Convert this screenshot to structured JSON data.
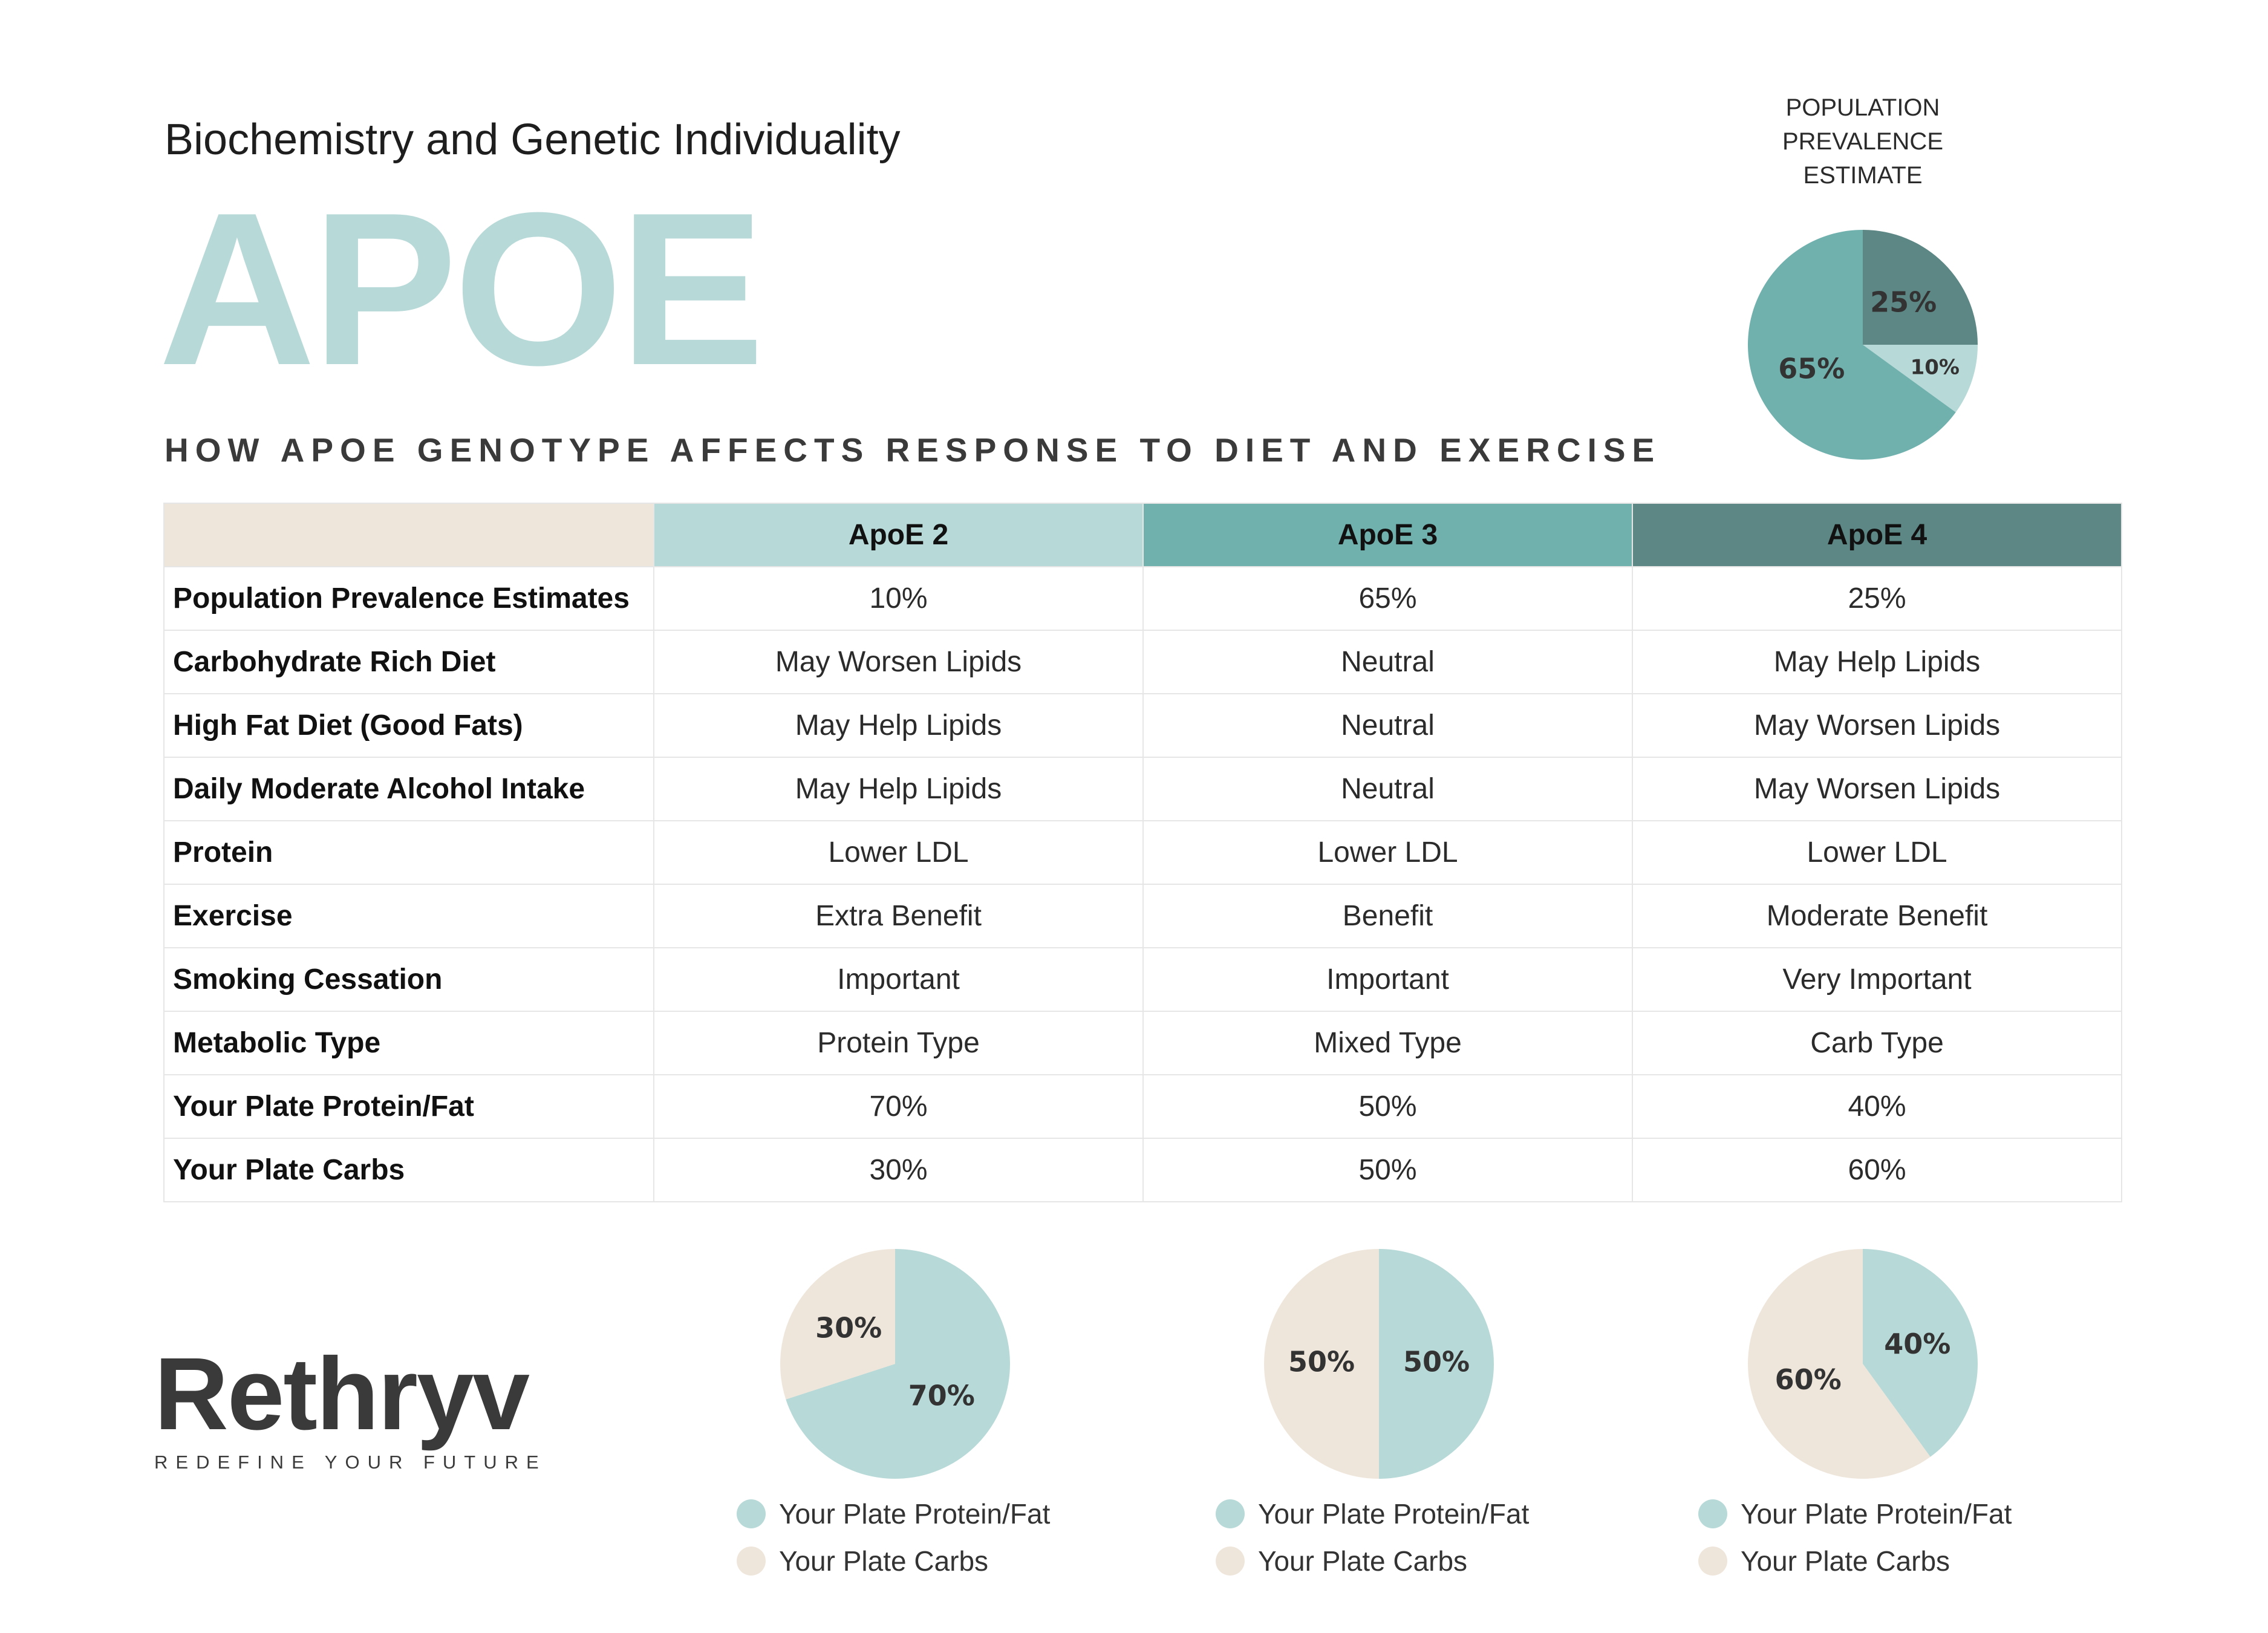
{
  "header": {
    "subtitle": "Biochemistry and Genetic Individuality",
    "title": "APOE",
    "section_heading": "HOW APOE GENOTYPE AFFECTS RESPONSE TO DIET AND EXERCISE"
  },
  "colors": {
    "apoe2": "#b7d9d7",
    "apoe3": "#70b1ae",
    "apoe4": "#5c8784",
    "carbs": "#efe6db"
  },
  "population_pie": {
    "label_lines": [
      "POPULATION",
      "PREVALENCE",
      "ESTIMATE"
    ]
  },
  "table": {
    "columns": [
      "ApoE 2",
      "ApoE 3",
      "ApoE 4"
    ],
    "rows": [
      {
        "label": "Population Prevalence Estimates",
        "values": [
          "10%",
          "65%",
          "25%"
        ]
      },
      {
        "label": "Carbohydrate Rich Diet",
        "values": [
          "May Worsen Lipids",
          "Neutral",
          "May Help Lipids"
        ]
      },
      {
        "label": "High Fat Diet (Good Fats)",
        "values": [
          "May Help Lipids",
          "Neutral",
          "May Worsen Lipids"
        ]
      },
      {
        "label": "Daily Moderate Alcohol Intake",
        "values": [
          "May Help Lipids",
          "Neutral",
          "May Worsen Lipids"
        ]
      },
      {
        "label": "Protein",
        "values": [
          "Lower LDL",
          "Lower LDL",
          "Lower LDL"
        ]
      },
      {
        "label": "Exercise",
        "values": [
          "Extra Benefit",
          "Benefit",
          "Moderate Benefit"
        ]
      },
      {
        "label": "Smoking Cessation",
        "values": [
          "Important",
          "Important",
          "Very Important"
        ]
      },
      {
        "label": "Metabolic Type",
        "values": [
          "Protein Type",
          "Mixed Type",
          "Carb Type"
        ]
      },
      {
        "label": "Your Plate Protein/Fat",
        "values": [
          "70%",
          "50%",
          "40%"
        ]
      },
      {
        "label": "Your Plate Carbs",
        "values": [
          "30%",
          "50%",
          "60%"
        ]
      }
    ]
  },
  "chart_data": [
    {
      "type": "pie",
      "title": "POPULATION PREVALENCE ESTIMATE",
      "slices": [
        {
          "name": "ApoE 4",
          "value": 25,
          "label": "25%",
          "color": "#5c8784"
        },
        {
          "name": "ApoE 2",
          "value": 10,
          "label": "10%",
          "color": "#b7d9d7"
        },
        {
          "name": "ApoE 3",
          "value": 65,
          "label": "65%",
          "color": "#70b1ae"
        }
      ]
    },
    {
      "type": "pie",
      "slices": [
        {
          "name": "Your Plate Protein/Fat",
          "value": 70,
          "label": "70%",
          "color": "#b7d9d7"
        },
        {
          "name": "Your Plate Carbs",
          "value": 30,
          "label": "30%",
          "color": "#efe6db"
        }
      ]
    },
    {
      "type": "pie",
      "slices": [
        {
          "name": "Your Plate Protein/Fat",
          "value": 50,
          "label": "50%",
          "color": "#b7d9d7"
        },
        {
          "name": "Your Plate Carbs",
          "value": 50,
          "label": "50%",
          "color": "#efe6db"
        }
      ]
    },
    {
      "type": "pie",
      "slices": [
        {
          "name": "Your Plate Protein/Fat",
          "value": 40,
          "label": "40%",
          "color": "#b7d9d7"
        },
        {
          "name": "Your Plate Carbs",
          "value": 60,
          "label": "60%",
          "color": "#efe6db"
        }
      ]
    }
  ],
  "legend": {
    "protein_fat": "Your Plate Protein/Fat",
    "carbs": "Your Plate Carbs"
  },
  "brand": {
    "name": "Rethryv",
    "tagline": "REDEFINE YOUR FUTURE"
  }
}
